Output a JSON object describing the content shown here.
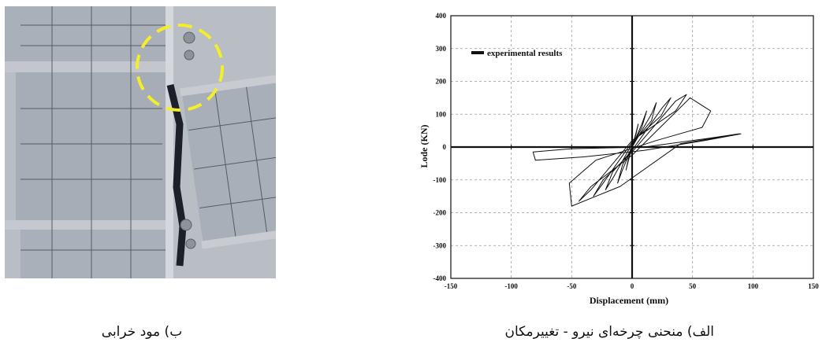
{
  "captions": {
    "chart": "الف) منحنی چرخه‌ای نیرو - تغییرمکان",
    "photo": "ب) مود خرابی"
  },
  "colors": {
    "photo_background": "#b9bec4",
    "steel_plate": "#a7adb6",
    "marker": "#f4ee2a",
    "curve": "#111111"
  },
  "chart_data": {
    "type": "line",
    "xlabel": "Displacement (mm)",
    "ylabel": "Lode (KN)",
    "xlim": [
      -150,
      150
    ],
    "ylim": [
      -400,
      400
    ],
    "xticks": [
      -150,
      -100,
      -50,
      0,
      50,
      100,
      150
    ],
    "yticks": [
      -400,
      -300,
      -200,
      -100,
      0,
      100,
      200,
      300,
      400
    ],
    "grid": true,
    "legend_position": "top-left",
    "series": [
      {
        "name": "experimental results",
        "x": [
          0,
          3,
          5,
          3,
          0,
          -3,
          -5,
          -3,
          0,
          8,
          12,
          8,
          0,
          -8,
          -12,
          -8,
          0,
          16,
          20,
          16,
          0,
          -16,
          -22,
          -16,
          0,
          25,
          32,
          24,
          0,
          -24,
          -32,
          -24,
          0,
          36,
          45,
          36,
          0,
          -34,
          -44,
          -34,
          0,
          48,
          65,
          58,
          20,
          -30,
          -52,
          -50,
          -10,
          40,
          80,
          88,
          60,
          10,
          -50,
          -82,
          -80,
          -40,
          10,
          60,
          90,
          88
        ],
        "y": [
          0,
          40,
          70,
          35,
          0,
          -40,
          -70,
          -35,
          0,
          70,
          110,
          60,
          0,
          -70,
          -110,
          -55,
          0,
          100,
          135,
          80,
          10,
          -95,
          -130,
          -75,
          -10,
          120,
          150,
          95,
          15,
          -110,
          -150,
          -100,
          -15,
          140,
          160,
          110,
          20,
          -130,
          -165,
          -120,
          -25,
          150,
          110,
          60,
          20,
          -40,
          -110,
          -180,
          -120,
          10,
          35,
          40,
          25,
          0,
          -5,
          -15,
          -40,
          -30,
          -10,
          20,
          40,
          40
        ]
      }
    ]
  }
}
